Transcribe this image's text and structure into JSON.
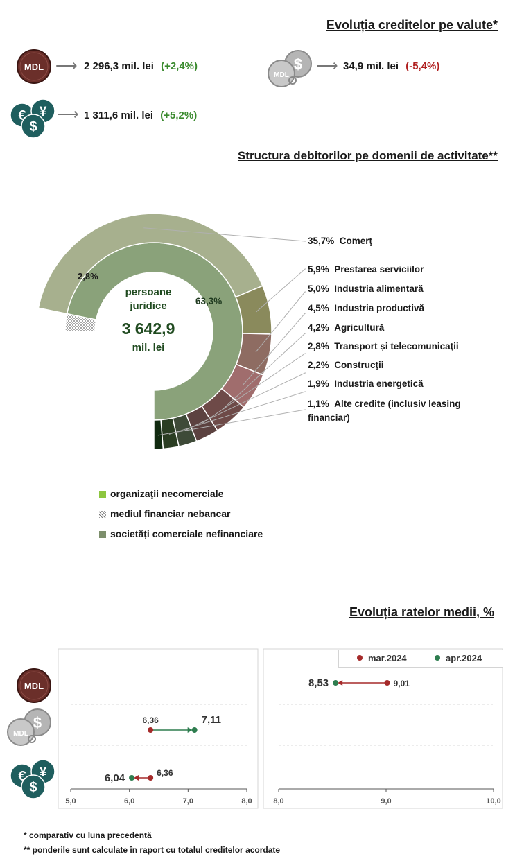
{
  "credits": {
    "title": "Evoluția creditelor pe valute*",
    "mdl": {
      "icon_text": "MDL",
      "value": "2 296,3 mil. lei",
      "change": "(+2,4%)"
    },
    "usd_linked": {
      "icon_text": "MDL",
      "value": "34,9 mil. lei",
      "change": "(-5,4%)"
    },
    "fx": {
      "value": "1 311,6 mil. lei",
      "change": "(+5,2%)"
    }
  },
  "structure": {
    "title": "Structura debitorilor pe domenii de activitate**",
    "center_lines": [
      "persoane",
      "juridice"
    ],
    "center_value": "3 642,9",
    "center_unit": "mil. lei",
    "inner_pct_main": "63,3%",
    "inner_pct_nbf": "2,8%"
  },
  "chart_data": [
    {
      "type": "pie",
      "title": "Structura debitorilor pe domenii de activitate**",
      "center_label": "persoane juridice 3 642,9 mil. lei",
      "inner_ring": [
        {
          "name": "societăți comerciale nefinanciare",
          "value": 63.3,
          "color": "#8aa27a"
        },
        {
          "name": "mediul financiar nebancar",
          "value": 2.8,
          "color": "#ffffff"
        },
        {
          "name": "organizații necomerciale",
          "value": null,
          "color": "#8dc63f"
        }
      ],
      "outer_ring": [
        {
          "label": "35,7%",
          "name": "Comerţ",
          "value": 35.7,
          "color": "#a7b08e"
        },
        {
          "label": "5,9%",
          "name": "Prestarea serviciilor",
          "value": 5.9,
          "color": "#8a8a5c"
        },
        {
          "label": "5,0%",
          "name": "Industria alimentară",
          "value": 5.0,
          "color": "#8e6c62"
        },
        {
          "label": "4,5%",
          "name": "Industria productivă",
          "value": 4.5,
          "color": "#a06d6d"
        },
        {
          "label": "4,2%",
          "name": "Agricultură",
          "value": 4.2,
          "color": "#6e4a48"
        },
        {
          "label": "2,8%",
          "name": "Transport și telecomunicaţii",
          "value": 2.8,
          "color": "#5c4240"
        },
        {
          "label": "2,2%",
          "name": "Construcţii",
          "value": 2.2,
          "color": "#3e4a38"
        },
        {
          "label": "1,9%",
          "name": "Industria energetică",
          "value": 1.9,
          "color": "#2a3d22"
        },
        {
          "label": "1,1%",
          "name": "Alte credite (inclusiv leasing financiar)",
          "value": 1.1,
          "color": "#112a10"
        }
      ],
      "legend": [
        {
          "name": "organizaţii necomerciale",
          "color": "#8dc63f",
          "pattern": "solid"
        },
        {
          "name": "mediul financiar nebancar",
          "color": "#999999",
          "pattern": "dots"
        },
        {
          "name": "societăți comerciale nefinanciare",
          "color": "#7d8f6c",
          "pattern": "solid"
        }
      ]
    },
    {
      "type": "scatter",
      "title": "Evoluția ratelor medii, %",
      "series_names": [
        "mar.2024",
        "apr.2024"
      ],
      "series_colors": [
        "#a52a2a",
        "#2e7d4f"
      ],
      "panels": [
        {
          "xlim": [
            5.0,
            8.0
          ],
          "xticks": [
            "5,0",
            "6,0",
            "7,0",
            "8,0"
          ],
          "rows": [
            {
              "category": "MDL",
              "mar": null,
              "apr": null
            },
            {
              "category": "MDL legat de USD",
              "mar": 6.36,
              "apr": 7.11,
              "mar_label": "6,36",
              "apr_label": "7,11"
            },
            {
              "category": "Valută străină",
              "mar": 6.36,
              "apr": 6.04,
              "mar_label": "6,36",
              "apr_label": "6,04"
            }
          ]
        },
        {
          "xlim": [
            8.0,
            10.0
          ],
          "xticks": [
            "8,0",
            "9,0",
            "10,0"
          ],
          "rows": [
            {
              "category": "MDL",
              "mar": 9.01,
              "apr": 8.53,
              "mar_label": "9,01",
              "apr_label": "8,53"
            },
            {
              "category": "MDL legat de USD",
              "mar": null,
              "apr": null
            },
            {
              "category": "Valută străină",
              "mar": null,
              "apr": null
            }
          ]
        }
      ]
    }
  ],
  "rates": {
    "title": "Evoluția ratelor medii, %",
    "legend_mar": "mar.2024",
    "legend_apr": "apr.2024"
  },
  "footnotes": {
    "f1": "* comparativ cu luna precedentă",
    "f2": "** ponderile sunt calculate în raport cu totalul creditelor acordate"
  }
}
